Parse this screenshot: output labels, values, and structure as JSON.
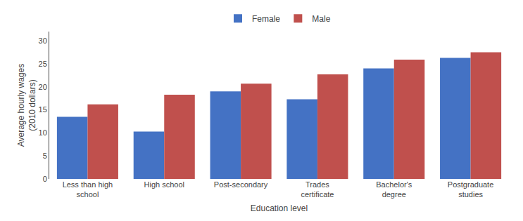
{
  "chart_data": {
    "type": "bar",
    "xlabel": "Education level",
    "ylabel": "Average hourly wages\n(2010 dollars)",
    "categories": [
      "Less than high\nschool",
      "High school",
      "Post-secondary",
      "Trades\ncertificate",
      "Bachelor's\ndegree",
      "Postgraduate\nstudies"
    ],
    "series": [
      {
        "name": "Female",
        "color": "#4472c4",
        "values": [
          13.5,
          10.3,
          19.0,
          17.3,
          24.0,
          26.3
        ]
      },
      {
        "name": "Male",
        "color": "#c0504d",
        "values": [
          16.2,
          18.3,
          20.7,
          22.7,
          25.9,
          27.5
        ]
      }
    ],
    "ylim": [
      0,
      32
    ],
    "yticks": [
      0,
      5,
      10,
      15,
      20,
      25,
      30
    ],
    "grid": false,
    "legend": "upper center"
  }
}
